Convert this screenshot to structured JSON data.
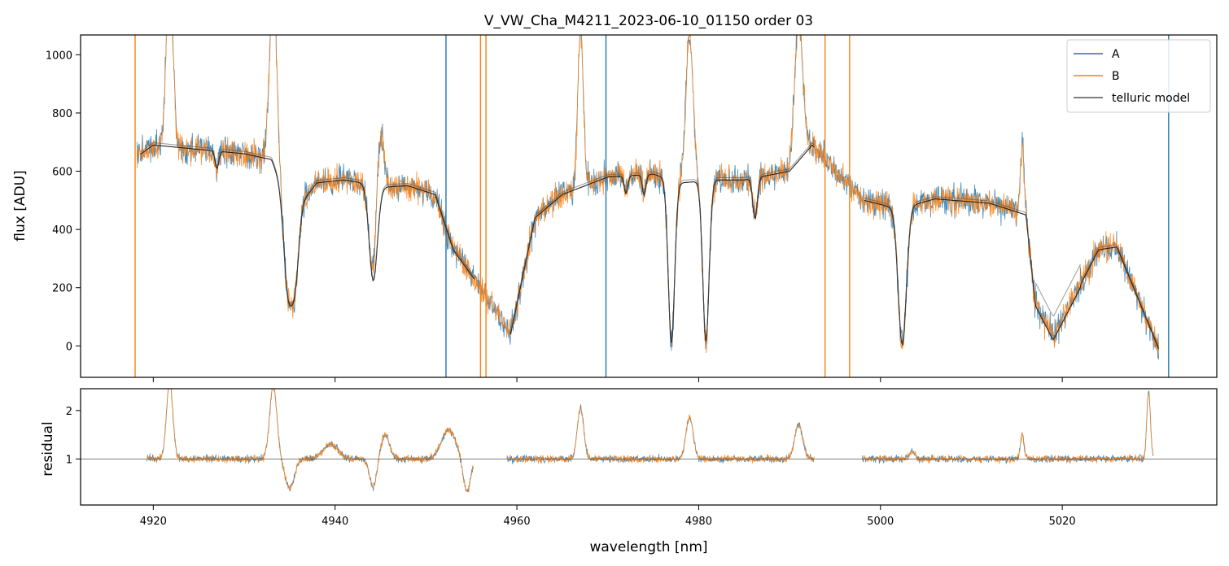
{
  "chart_data": [
    {
      "panel": "top",
      "type": "line",
      "title": "V_VW_Cha_M4211_2023-06-10_01150  order 03",
      "xlabel": "",
      "ylabel": "flux [ADU]",
      "xlim": [
        4912,
        5037
      ],
      "ylim": [
        -108,
        1068
      ],
      "yticks": [
        0,
        200,
        400,
        600,
        800,
        1000
      ],
      "xticks": [
        4920,
        4940,
        4960,
        4980,
        5000,
        5020
      ],
      "grid": false,
      "legend_position": "top-right",
      "colors": {
        "A": "#1f77b4",
        "B": "#ff7f0e",
        "telluric": "#555555"
      },
      "series": [
        {
          "name": "A",
          "noise": 45,
          "seed": 1
        },
        {
          "name": "B",
          "noise": 45,
          "seed": 2
        },
        {
          "name": "telluric model"
        }
      ],
      "continuum": {
        "x": [
          4918.2,
          4920,
          4925,
          4930,
          4933,
          4934,
          4936,
          4938,
          4941,
          4944,
          4945,
          4948,
          4951,
          4953,
          4955.3,
          4959.3,
          4962,
          4965,
          4970,
          4975,
          4978,
          4982,
          4985,
          4990,
          4992.5,
          4998.2,
          5002,
          5006,
          5012,
          5016,
          5017,
          5019,
          5024,
          5026,
          5030.6
        ],
        "y": [
          650,
          690,
          675,
          660,
          640,
          560,
          480,
          560,
          570,
          555,
          545,
          550,
          520,
          330,
          230,
          40,
          440,
          520,
          580,
          590,
          560,
          570,
          570,
          600,
          690,
          500,
          470,
          505,
          490,
          450,
          150,
          30,
          330,
          340,
          -10
        ]
      },
      "absorption_lines": [
        {
          "x": 4934.8,
          "depth": 330,
          "width": 0.45
        },
        {
          "x": 4935.6,
          "depth": 250,
          "width": 0.4
        },
        {
          "x": 4944.2,
          "depth": 330,
          "width": 0.45
        },
        {
          "x": 4977.0,
          "depth": 560,
          "width": 0.35
        },
        {
          "x": 4980.8,
          "depth": 550,
          "width": 0.35
        },
        {
          "x": 4986.2,
          "depth": 140,
          "width": 0.25
        },
        {
          "x": 5002.4,
          "depth": 470,
          "width": 0.45
        },
        {
          "x": 4927.0,
          "depth": 60,
          "width": 0.2
        },
        {
          "x": 4972.0,
          "depth": 60,
          "width": 0.2
        },
        {
          "x": 4974.0,
          "depth": 70,
          "width": 0.2
        }
      ],
      "emission_lines": [
        {
          "x": 4921.8,
          "height": 650,
          "width": 0.35
        },
        {
          "x": 4933.2,
          "height": 600,
          "width": 0.4
        },
        {
          "x": 4944.9,
          "height": 250,
          "width": 0.4
        },
        {
          "x": 4967.0,
          "height": 560,
          "width": 0.3
        },
        {
          "x": 4979.0,
          "height": 500,
          "width": 0.4
        },
        {
          "x": 4991.0,
          "height": 470,
          "width": 0.45
        },
        {
          "x": 5015.6,
          "height": 230,
          "width": 0.2
        }
      ],
      "vertical_spikes": [
        4918.0,
        4952.2,
        4956.0,
        4956.6,
        4969.8,
        4993.9,
        4996.6,
        5031.7
      ]
    },
    {
      "panel": "bottom",
      "type": "line",
      "title": "",
      "xlabel": "wavelength [nm]",
      "ylabel": "residual",
      "xlim": [
        4912,
        5037
      ],
      "ylim": [
        0.05,
        2.45
      ],
      "yticks": [
        1,
        2
      ],
      "xticks": [
        4920,
        4940,
        4960,
        4980,
        5000,
        5020
      ],
      "reference_line": 1,
      "segments": [
        [
          4919.3,
          4955.2
        ],
        [
          4958.9,
          4992.7
        ],
        [
          4998.0,
          5030.0
        ]
      ],
      "features": [
        {
          "x": 4921.8,
          "amp": 1.6,
          "width": 0.35
        },
        {
          "x": 4933.2,
          "amp": 1.5,
          "width": 0.4
        },
        {
          "x": 4935.0,
          "amp": -0.6,
          "width": 0.5
        },
        {
          "x": 4939.5,
          "amp": 0.3,
          "width": 0.8
        },
        {
          "x": 4944.2,
          "amp": -0.6,
          "width": 0.4
        },
        {
          "x": 4945.5,
          "amp": 0.5,
          "width": 0.5
        },
        {
          "x": 4952.5,
          "amp": 0.6,
          "width": 0.8
        },
        {
          "x": 4954.5,
          "amp": -0.7,
          "width": 0.4
        },
        {
          "x": 4967.0,
          "amp": 1.05,
          "width": 0.35
        },
        {
          "x": 4979.0,
          "amp": 0.85,
          "width": 0.4
        },
        {
          "x": 4991.0,
          "amp": 0.7,
          "width": 0.45
        },
        {
          "x": 5003.5,
          "amp": 0.15,
          "width": 0.3
        },
        {
          "x": 5015.6,
          "amp": 0.5,
          "width": 0.2
        },
        {
          "x": 5029.5,
          "amp": 1.4,
          "width": 0.2
        }
      ]
    }
  ]
}
